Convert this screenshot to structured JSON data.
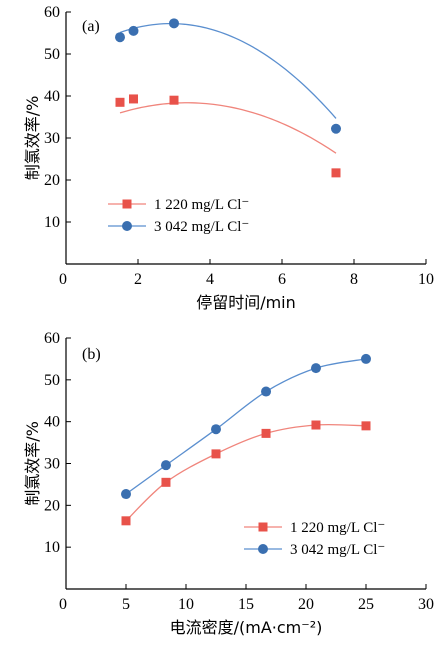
{
  "chart_data": [
    {
      "type": "scatter",
      "panel_label": "(a)",
      "xlabel": "停留时间/min",
      "ylabel": "制氯效率/%",
      "xlim": [
        0,
        10
      ],
      "ylim": [
        0,
        60
      ],
      "xticks": [
        0,
        2,
        4,
        6,
        8,
        10
      ],
      "yticks": [
        10,
        20,
        30,
        40,
        50,
        60
      ],
      "grid": false,
      "legend_position": "bottom-left",
      "series": [
        {
          "name": "1 220 mg/L Cl⁻",
          "color": "#e8524a",
          "line_color": "#f0857c",
          "marker": "square",
          "x": [
            1.5,
            1.875,
            3.0,
            7.5
          ],
          "y": [
            38.5,
            39.3,
            39.0,
            21.7
          ],
          "fit": [
            -0.7,
            4.7,
            30.5
          ]
        },
        {
          "name": "3 042 mg/L Cl⁻",
          "color": "#3a6fb0",
          "line_color": "#5b8fcf",
          "marker": "circle",
          "x": [
            1.5,
            1.875,
            3.0,
            7.5
          ],
          "y": [
            54.0,
            55.5,
            57.3,
            32.2
          ],
          "fit": [
            -1.07,
            6.22,
            48.2
          ]
        }
      ]
    },
    {
      "type": "line",
      "panel_label": "(b)",
      "xlabel": "电流密度/(mA·cm⁻²)",
      "ylabel": "制氯效率/%",
      "xlim": [
        0,
        30
      ],
      "ylim": [
        0,
        60
      ],
      "xticks": [
        0,
        5,
        10,
        15,
        20,
        25,
        30
      ],
      "yticks": [
        10,
        20,
        30,
        40,
        50,
        60
      ],
      "grid": false,
      "legend_position": "bottom-right",
      "series": [
        {
          "name": "1 220 mg/L Cl⁻",
          "color": "#e8524a",
          "line_color": "#f0857c",
          "marker": "square",
          "x": [
            5,
            8.33,
            12.5,
            16.67,
            20.83,
            25
          ],
          "y": [
            16.3,
            25.5,
            32.3,
            37.2,
            39.2,
            39.0
          ]
        },
        {
          "name": "3 042 mg/L Cl⁻",
          "color": "#3a6fb0",
          "line_color": "#5b8fcf",
          "marker": "circle",
          "x": [
            5,
            8.33,
            12.5,
            16.67,
            20.83,
            25
          ],
          "y": [
            22.7,
            29.6,
            38.2,
            47.2,
            52.8,
            55.0
          ]
        }
      ]
    }
  ]
}
